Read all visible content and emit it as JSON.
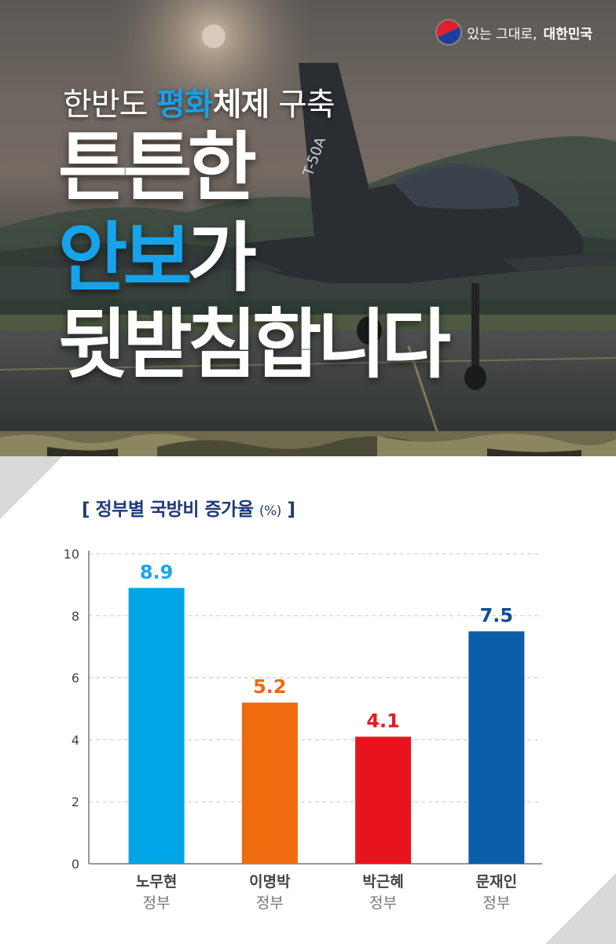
{
  "header": {
    "brand_text_1": "있는 그대로,",
    "brand_text_2": "대한민국",
    "subtitle_part1": "한반도 ",
    "subtitle_highlight": "평화",
    "subtitle_part2": "체제",
    "subtitle_part3": " 구축",
    "headline_line1": "튼튼한",
    "headline_line2_highlight": "안보",
    "headline_line2_rest": "가",
    "headline_line3": "뒷받침합니다",
    "aircraft_marking": "T-50A"
  },
  "colors": {
    "highlight_blue": "#16a3ea",
    "title_navy": "#1f3a7a"
  },
  "chart_data": {
    "type": "bar",
    "title": "[ 정부별 국방비 증가율",
    "unit": "(%)",
    "title_close": "]",
    "ylim": [
      0,
      10
    ],
    "yticks": [
      0,
      2,
      4,
      6,
      8,
      10
    ],
    "grid": true,
    "categories": [
      {
        "name": "노무현",
        "sub": "정부"
      },
      {
        "name": "이명박",
        "sub": "정부"
      },
      {
        "name": "박근혜",
        "sub": "정부"
      },
      {
        "name": "문재인",
        "sub": "정부"
      }
    ],
    "values": [
      8.9,
      5.2,
      4.1,
      7.5
    ],
    "value_labels": [
      "8.9",
      "5.2",
      "4.1",
      "7.5"
    ],
    "bar_colors": [
      "#00a6e8",
      "#f06a0f",
      "#e8141d",
      "#0b5ea8"
    ],
    "label_colors": [
      "#18a6e6",
      "#e96a12",
      "#e01b22",
      "#0b4f94"
    ]
  }
}
